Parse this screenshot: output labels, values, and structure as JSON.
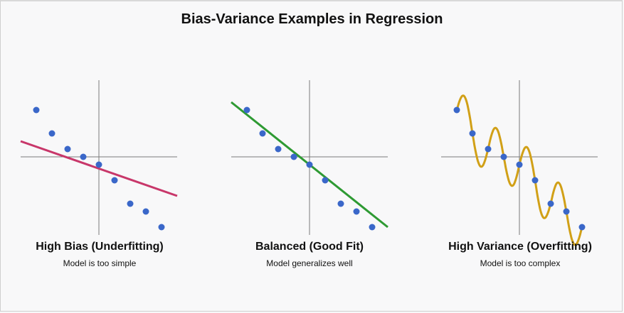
{
  "title": "Bias-Variance Examples in Regression",
  "colors": {
    "axis": "#7a7a7a",
    "point": "#3a67c9",
    "high_bias_line": "#c8376a",
    "balanced_line": "#2e9a33",
    "high_variance_line": "#d1a017"
  },
  "panels": [
    {
      "id": "high-bias",
      "title": "High Bias (Underfitting)",
      "subtitle": "Model is too simple",
      "model": "linear-flat"
    },
    {
      "id": "balanced",
      "title": "Balanced (Good Fit)",
      "subtitle": "Model generalizes well",
      "model": "linear-fit"
    },
    {
      "id": "high-variance",
      "title": "High Variance (Overfitting)",
      "subtitle": "Model is too complex",
      "model": "wiggly-curve"
    }
  ],
  "chart_data": {
    "type": "scatter",
    "x": [
      -4,
      -3,
      -2,
      -1,
      0,
      1,
      2,
      3,
      4
    ],
    "y": [
      3,
      1.5,
      0.5,
      0,
      -0.5,
      -1.5,
      -3,
      -3.5,
      -4.5
    ]
  }
}
